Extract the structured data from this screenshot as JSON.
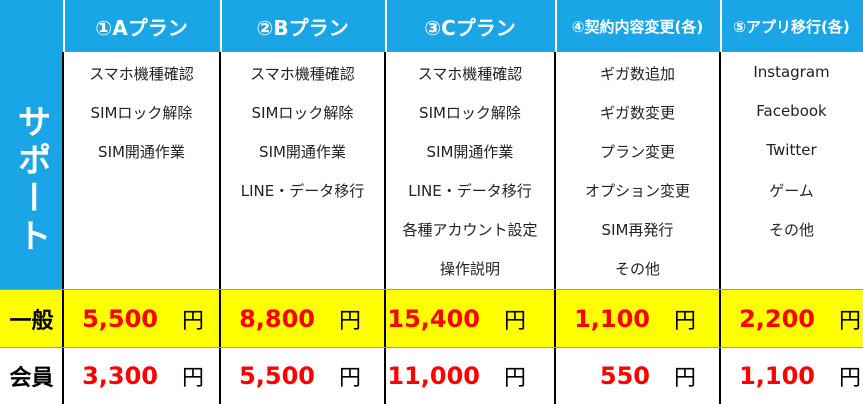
{
  "header": {
    "columns": [
      "①Aプラン",
      "②Bプラン",
      "③Cプラン",
      "④契約内容変更(各)",
      "⑤アプリ移行(各)"
    ]
  },
  "support": {
    "label": "サポート",
    "items": [
      [
        "スマホ機種確認",
        "SIMロック解除",
        "SIM開通作業"
      ],
      [
        "スマホ機種確認",
        "SIMロック解除",
        "SIM開通作業",
        "LINE・データ移行"
      ],
      [
        "スマホ機種確認",
        "SIMロック解除",
        "SIM開通作業",
        "LINE・データ移行",
        "各種アカウント設定",
        "操作説明"
      ],
      [
        "ギガ数追加",
        "ギガ数変更",
        "プラン変更",
        "オプション変更",
        "SIM再発行",
        "その他"
      ],
      [
        "Instagram",
        "Facebook",
        "Twitter",
        "ゲーム",
        "その他"
      ]
    ]
  },
  "rows": [
    {
      "label": "一般",
      "prices": [
        {
          "amount": "5,500",
          "unit": "円"
        },
        {
          "amount": "8,800",
          "unit": "円"
        },
        {
          "amount": "15,400",
          "unit": "円"
        },
        {
          "amount": "1,100",
          "unit": "円"
        },
        {
          "amount": "2,200",
          "unit": "円"
        }
      ]
    },
    {
      "label": "会員",
      "prices": [
        {
          "amount": "3,300",
          "unit": "円"
        },
        {
          "amount": "5,500",
          "unit": "円"
        },
        {
          "amount": "11,000",
          "unit": "円"
        },
        {
          "amount": "550",
          "unit": "円"
        },
        {
          "amount": "1,100",
          "unit": "円"
        }
      ]
    }
  ]
}
